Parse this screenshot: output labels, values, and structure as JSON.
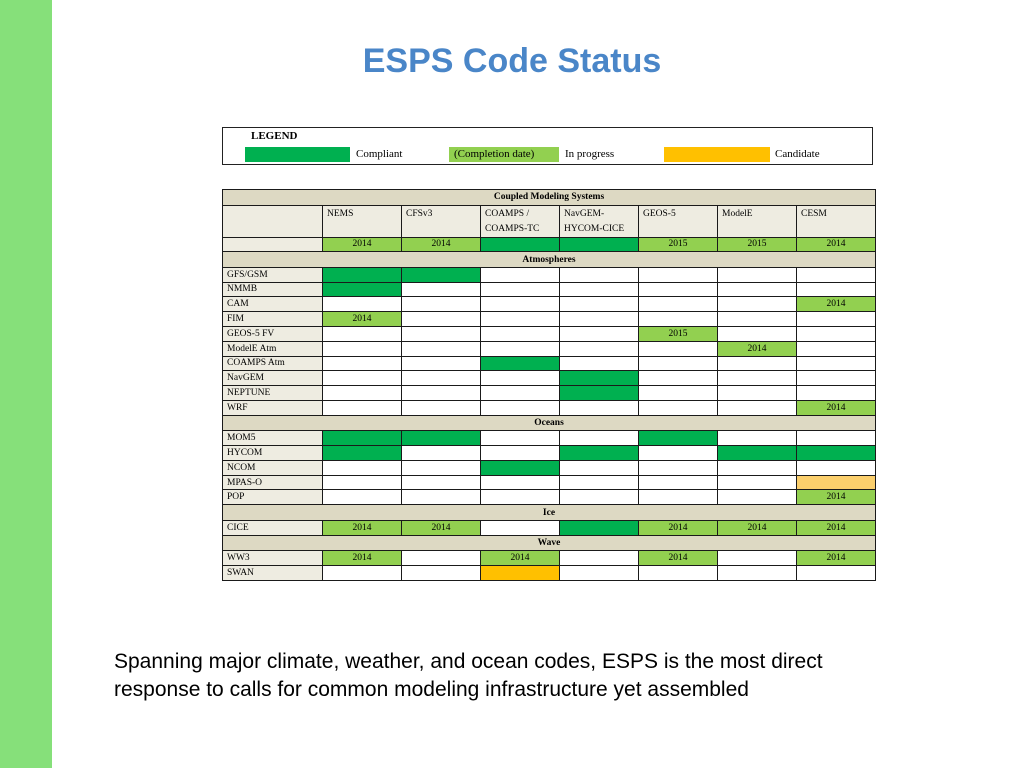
{
  "slide": {
    "title": "ESPS Code Status",
    "caption_line1": "Spanning major climate, weather, and ocean codes, ESPS is the most direct",
    "caption_line2": "response to calls for common modeling infrastructure yet assembled",
    "sidebar_color": "#86e07a",
    "title_color": "#4a86c8"
  },
  "legend": {
    "title": "LEGEND",
    "items": [
      {
        "swatch_color": "#00b050",
        "label": ""
      },
      {
        "swatch_color": "",
        "label": "Compliant"
      },
      {
        "swatch_color": "#92d050",
        "label": "(Completion date)"
      },
      {
        "swatch_color": "",
        "label": "In progress"
      },
      {
        "swatch_color": "#ffc000",
        "label": ""
      },
      {
        "swatch_color": "",
        "label": "Candidate"
      }
    ]
  },
  "colors": {
    "compliant": "#00b050",
    "in_progress": "#92d050",
    "candidate": "#ffc000",
    "candidate_light": "#fbcf6c",
    "label_bg": "#eeece1",
    "section_bg": "#ddd9c3"
  },
  "table": {
    "header_title": "Coupled Modeling Systems",
    "columns": [
      {
        "line1": "NEMS",
        "line2": ""
      },
      {
        "line1": "CFSv3",
        "line2": ""
      },
      {
        "line1": "COAMPS /",
        "line2": "COAMPS-TC"
      },
      {
        "line1": "NavGEM-",
        "line2": "HYCOM-CICE"
      },
      {
        "line1": "GEOS-5",
        "line2": ""
      },
      {
        "line1": "ModelE",
        "line2": ""
      },
      {
        "line1": "CESM",
        "line2": ""
      }
    ],
    "system_row": {
      "label": "",
      "cells": [
        {
          "status": "in_progress",
          "text": "2014"
        },
        {
          "status": "in_progress",
          "text": "2014"
        },
        {
          "status": "compliant",
          "text": ""
        },
        {
          "status": "compliant",
          "text": ""
        },
        {
          "status": "in_progress",
          "text": "2015"
        },
        {
          "status": "in_progress",
          "text": "2015"
        },
        {
          "status": "in_progress",
          "text": "2014"
        }
      ]
    },
    "sections": [
      {
        "name": "Atmospheres",
        "rows": [
          {
            "label": "GFS/GSM",
            "cells": [
              {
                "status": "compliant",
                "text": ""
              },
              {
                "status": "compliant",
                "text": ""
              },
              {
                "status": "none",
                "text": ""
              },
              {
                "status": "none",
                "text": ""
              },
              {
                "status": "none",
                "text": ""
              },
              {
                "status": "none",
                "text": ""
              },
              {
                "status": "none",
                "text": ""
              }
            ]
          },
          {
            "label": "NMMB",
            "cells": [
              {
                "status": "compliant",
                "text": ""
              },
              {
                "status": "none",
                "text": ""
              },
              {
                "status": "none",
                "text": ""
              },
              {
                "status": "none",
                "text": ""
              },
              {
                "status": "none",
                "text": ""
              },
              {
                "status": "none",
                "text": ""
              },
              {
                "status": "none",
                "text": ""
              }
            ]
          },
          {
            "label": "CAM",
            "cells": [
              {
                "status": "none",
                "text": ""
              },
              {
                "status": "none",
                "text": ""
              },
              {
                "status": "none",
                "text": ""
              },
              {
                "status": "none",
                "text": ""
              },
              {
                "status": "none",
                "text": ""
              },
              {
                "status": "none",
                "text": ""
              },
              {
                "status": "in_progress",
                "text": "2014"
              }
            ]
          },
          {
            "label": "FIM",
            "cells": [
              {
                "status": "in_progress",
                "text": "2014"
              },
              {
                "status": "none",
                "text": ""
              },
              {
                "status": "none",
                "text": ""
              },
              {
                "status": "none",
                "text": ""
              },
              {
                "status": "none",
                "text": ""
              },
              {
                "status": "none",
                "text": ""
              },
              {
                "status": "none",
                "text": ""
              }
            ]
          },
          {
            "label": "GEOS-5 FV",
            "cells": [
              {
                "status": "none",
                "text": ""
              },
              {
                "status": "none",
                "text": ""
              },
              {
                "status": "none",
                "text": ""
              },
              {
                "status": "none",
                "text": ""
              },
              {
                "status": "in_progress",
                "text": "2015"
              },
              {
                "status": "none",
                "text": ""
              },
              {
                "status": "none",
                "text": ""
              }
            ]
          },
          {
            "label": "ModelE Atm",
            "cells": [
              {
                "status": "none",
                "text": ""
              },
              {
                "status": "none",
                "text": ""
              },
              {
                "status": "none",
                "text": ""
              },
              {
                "status": "none",
                "text": ""
              },
              {
                "status": "none",
                "text": ""
              },
              {
                "status": "in_progress",
                "text": "2014"
              },
              {
                "status": "none",
                "text": ""
              }
            ]
          },
          {
            "label": "COAMPS Atm",
            "cells": [
              {
                "status": "none",
                "text": ""
              },
              {
                "status": "none",
                "text": ""
              },
              {
                "status": "compliant",
                "text": ""
              },
              {
                "status": "none",
                "text": ""
              },
              {
                "status": "none",
                "text": ""
              },
              {
                "status": "none",
                "text": ""
              },
              {
                "status": "none",
                "text": ""
              }
            ]
          },
          {
            "label": "NavGEM",
            "cells": [
              {
                "status": "none",
                "text": ""
              },
              {
                "status": "none",
                "text": ""
              },
              {
                "status": "none",
                "text": ""
              },
              {
                "status": "compliant",
                "text": ""
              },
              {
                "status": "none",
                "text": ""
              },
              {
                "status": "none",
                "text": ""
              },
              {
                "status": "none",
                "text": ""
              }
            ]
          },
          {
            "label": "NEPTUNE",
            "cells": [
              {
                "status": "none",
                "text": ""
              },
              {
                "status": "none",
                "text": ""
              },
              {
                "status": "none",
                "text": ""
              },
              {
                "status": "compliant",
                "text": ""
              },
              {
                "status": "none",
                "text": ""
              },
              {
                "status": "none",
                "text": ""
              },
              {
                "status": "none",
                "text": ""
              }
            ]
          },
          {
            "label": "WRF",
            "cells": [
              {
                "status": "none",
                "text": ""
              },
              {
                "status": "none",
                "text": ""
              },
              {
                "status": "none",
                "text": ""
              },
              {
                "status": "none",
                "text": ""
              },
              {
                "status": "none",
                "text": ""
              },
              {
                "status": "none",
                "text": ""
              },
              {
                "status": "in_progress",
                "text": "2014"
              }
            ]
          }
        ]
      },
      {
        "name": "Oceans",
        "rows": [
          {
            "label": "MOM5",
            "cells": [
              {
                "status": "compliant",
                "text": ""
              },
              {
                "status": "compliant",
                "text": ""
              },
              {
                "status": "none",
                "text": ""
              },
              {
                "status": "none",
                "text": ""
              },
              {
                "status": "compliant",
                "text": ""
              },
              {
                "status": "none",
                "text": ""
              },
              {
                "status": "none",
                "text": ""
              }
            ]
          },
          {
            "label": "HYCOM",
            "cells": [
              {
                "status": "compliant",
                "text": ""
              },
              {
                "status": "none",
                "text": ""
              },
              {
                "status": "none",
                "text": ""
              },
              {
                "status": "compliant",
                "text": ""
              },
              {
                "status": "none",
                "text": ""
              },
              {
                "status": "compliant",
                "text": ""
              },
              {
                "status": "compliant",
                "text": ""
              }
            ]
          },
          {
            "label": "NCOM",
            "cells": [
              {
                "status": "none",
                "text": ""
              },
              {
                "status": "none",
                "text": ""
              },
              {
                "status": "compliant",
                "text": ""
              },
              {
                "status": "none",
                "text": ""
              },
              {
                "status": "none",
                "text": ""
              },
              {
                "status": "none",
                "text": ""
              },
              {
                "status": "none",
                "text": ""
              }
            ]
          },
          {
            "label": "MPAS-O",
            "cells": [
              {
                "status": "none",
                "text": ""
              },
              {
                "status": "none",
                "text": ""
              },
              {
                "status": "none",
                "text": ""
              },
              {
                "status": "none",
                "text": ""
              },
              {
                "status": "none",
                "text": ""
              },
              {
                "status": "none",
                "text": ""
              },
              {
                "status": "candidate_light",
                "text": ""
              }
            ]
          },
          {
            "label": "POP",
            "cells": [
              {
                "status": "none",
                "text": ""
              },
              {
                "status": "none",
                "text": ""
              },
              {
                "status": "none",
                "text": ""
              },
              {
                "status": "none",
                "text": ""
              },
              {
                "status": "none",
                "text": ""
              },
              {
                "status": "none",
                "text": ""
              },
              {
                "status": "in_progress",
                "text": "2014"
              }
            ]
          }
        ]
      },
      {
        "name": "Ice",
        "rows": [
          {
            "label": "CICE",
            "cells": [
              {
                "status": "in_progress",
                "text": "2014"
              },
              {
                "status": "in_progress",
                "text": "2014"
              },
              {
                "status": "none",
                "text": ""
              },
              {
                "status": "compliant",
                "text": ""
              },
              {
                "status": "in_progress",
                "text": "2014"
              },
              {
                "status": "in_progress",
                "text": "2014"
              },
              {
                "status": "in_progress",
                "text": "2014"
              }
            ]
          }
        ]
      },
      {
        "name": "Wave",
        "rows": [
          {
            "label": "WW3",
            "cells": [
              {
                "status": "in_progress",
                "text": "2014"
              },
              {
                "status": "none",
                "text": ""
              },
              {
                "status": "in_progress",
                "text": "2014"
              },
              {
                "status": "none",
                "text": ""
              },
              {
                "status": "in_progress",
                "text": "2014"
              },
              {
                "status": "none",
                "text": ""
              },
              {
                "status": "in_progress",
                "text": "2014"
              }
            ]
          },
          {
            "label": "SWAN",
            "cells": [
              {
                "status": "none",
                "text": ""
              },
              {
                "status": "none",
                "text": ""
              },
              {
                "status": "candidate",
                "text": ""
              },
              {
                "status": "none",
                "text": ""
              },
              {
                "status": "none",
                "text": ""
              },
              {
                "status": "none",
                "text": ""
              },
              {
                "status": "none",
                "text": ""
              }
            ]
          }
        ]
      }
    ]
  }
}
